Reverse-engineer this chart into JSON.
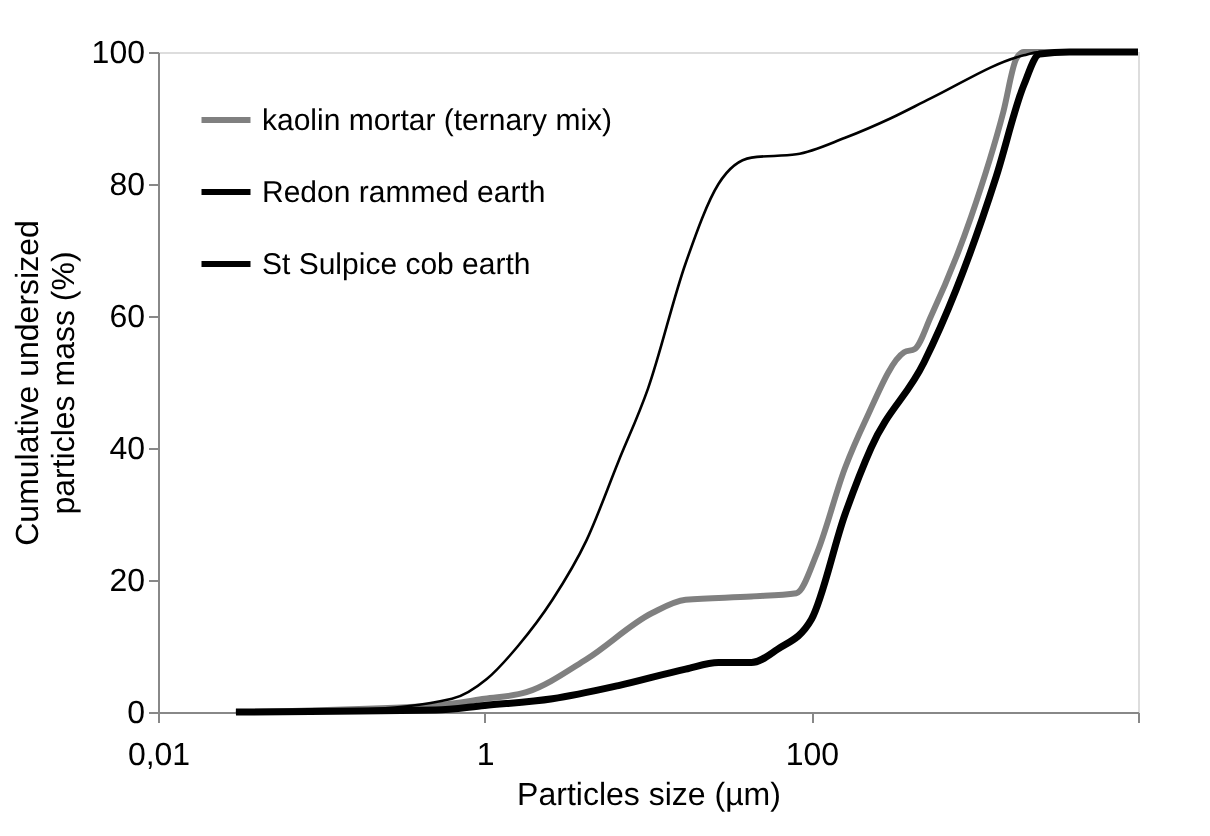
{
  "chart_data": {
    "type": "line",
    "xlabel": "Particles size (µm)",
    "ylabel": "Cumulative undersized particles mass (%)",
    "log": "x",
    "xlim": [
      0.01,
      10000
    ],
    "ylim": [
      0,
      100
    ],
    "xticks": [
      {
        "value": 0.01,
        "label": "0,01"
      },
      1,
      100,
      {
        "value": 10000,
        "label": null
      }
    ],
    "yticks": [
      0,
      20,
      40,
      60,
      80,
      100
    ],
    "grid": false,
    "legend": "top left",
    "marker": "none",
    "line_style": "solid",
    "series": [
      {
        "name": "kaolin mortar (ternary mix)",
        "color": "#808080",
        "x": [
          0.03,
          0.5,
          1,
          1.8,
          4.2,
          10.6,
          17,
          43,
          81,
          108,
          161,
          213,
          370,
          430,
          541,
          950,
          1500,
          1800,
          2000,
          10000
        ],
        "values": [
          0,
          1,
          2,
          3,
          8,
          15,
          17,
          17.5,
          18,
          24,
          37,
          44,
          54.5,
          55,
          60,
          75,
          91,
          99,
          100,
          100
        ]
      },
      {
        "name": "Redon rammed earth",
        "color": "#000000",
        "x": [
          0.03,
          0.5,
          1,
          2.6,
          6.6,
          17,
          27,
          43,
          62,
          100,
          161,
          232,
          490,
          770,
          1350,
          2000,
          2500,
          3800,
          10000
        ],
        "values": [
          0,
          0.3,
          1,
          2,
          4,
          6.5,
          7.5,
          7.5,
          9.5,
          14,
          30,
          40,
          53,
          64,
          81,
          95,
          99.7,
          100,
          100
        ]
      },
      {
        "name": "St Sulpice cob earth",
        "color": "#000000",
        "x": [
          0.03,
          0.16,
          0.63,
          1.03,
          1.6,
          2.6,
          4.2,
          6.6,
          10,
          17,
          27,
          43,
          81,
          161,
          309,
          541,
          2000,
          2500,
          10000
        ],
        "values": [
          0,
          0.3,
          2,
          5,
          10,
          17,
          26,
          38,
          49,
          68,
          80,
          84,
          84.5,
          87,
          90,
          93,
          99.5,
          100,
          100
        ]
      }
    ]
  }
}
